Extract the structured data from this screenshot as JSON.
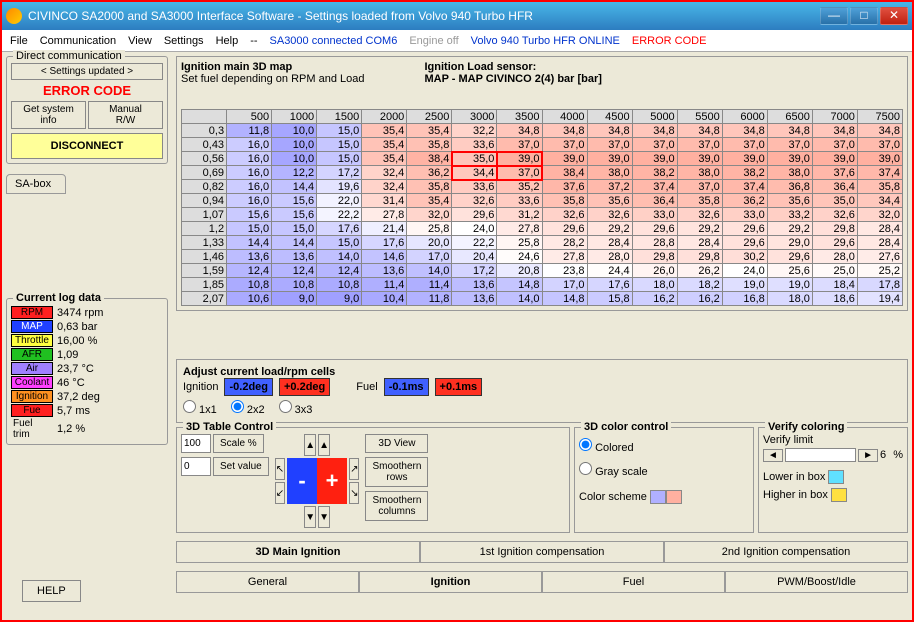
{
  "window": {
    "title": "CIVINCO SA2000 and SA3000 Interface Software - Settings loaded from Volvo 940 Turbo HFR"
  },
  "menu": {
    "items": [
      "File",
      "Communication",
      "View",
      "Settings",
      "Help",
      "--"
    ],
    "status_conn": "SA3000 connected COM6",
    "status_engine": "Engine off",
    "status_vehicle": "Volvo 940 Turbo HFR ONLINE",
    "status_error": "ERROR CODE"
  },
  "direct_comm": {
    "legend": "Direct communication",
    "updated": "< Settings updated >",
    "error": "ERROR CODE",
    "get_info": "Get system\ninfo",
    "manual": "Manual\nR/W",
    "disconnect": "DISCONNECT",
    "tab": "SA-box"
  },
  "log": {
    "legend": "Current log data",
    "rows": [
      {
        "label": "RPM",
        "bg": "#ff2020",
        "fg": "#000",
        "value": "3474 rpm"
      },
      {
        "label": "MAP",
        "bg": "#2040ff",
        "fg": "#fff",
        "value": "0,63 bar"
      },
      {
        "label": "Throttle",
        "bg": "#ffff40",
        "fg": "#000",
        "value": "16,00 %"
      },
      {
        "label": "AFR",
        "bg": "#20c020",
        "fg": "#000",
        "value": "1,09"
      },
      {
        "label": "Air",
        "bg": "#a080ff",
        "fg": "#000",
        "value": "23,7 °C"
      },
      {
        "label": "Coolant",
        "bg": "#ff40ff",
        "fg": "#000",
        "value": "46 °C"
      },
      {
        "label": "Ignition",
        "bg": "#ff9020",
        "fg": "#000",
        "value": "37,2 deg"
      },
      {
        "label": "Fue",
        "bg": "#ff2020",
        "fg": "#000",
        "value": "5,7 ms"
      },
      {
        "label": "Fuel trim",
        "bg": "transparent",
        "fg": "#000",
        "value": "1,2 %",
        "noborder": true
      }
    ]
  },
  "map_header": {
    "left_title": "Ignition main 3D map",
    "left_sub": "Set fuel depending on RPM and Load",
    "right_title": "Ignition Load sensor:",
    "right_sub": "MAP - MAP CIVINCO 2(4) bar [bar]"
  },
  "map": {
    "cols": [
      "500",
      "1000",
      "1500",
      "2000",
      "2500",
      "3000",
      "3500",
      "4000",
      "4500",
      "5000",
      "5500",
      "6000",
      "6500",
      "7000",
      "7500"
    ],
    "row_labels": [
      "0,3",
      "0,43",
      "0,56",
      "0,69",
      "0,82",
      "0,94",
      "1,07",
      "1,2",
      "1,33",
      "1,46",
      "1,59",
      "1,85",
      "2,07"
    ],
    "data": [
      [
        11.8,
        10.0,
        15.0,
        35.4,
        35.4,
        32.2,
        34.8,
        34.8,
        34.8,
        34.8,
        34.8,
        34.8,
        34.8,
        34.8,
        34.8
      ],
      [
        16.0,
        10.0,
        15.0,
        35.4,
        35.8,
        33.6,
        37.0,
        37.0,
        37.0,
        37.0,
        37.0,
        37.0,
        37.0,
        37.0,
        37.0
      ],
      [
        16.0,
        10.0,
        15.0,
        35.4,
        38.4,
        35.0,
        39.0,
        39.0,
        39.0,
        39.0,
        39.0,
        39.0,
        39.0,
        39.0,
        39.0
      ],
      [
        16.0,
        12.2,
        17.2,
        32.4,
        36.2,
        34.4,
        37.0,
        38.4,
        38.0,
        38.2,
        38.0,
        38.2,
        38.0,
        37.6,
        37.4
      ],
      [
        16.0,
        14.4,
        19.6,
        32.4,
        35.8,
        33.6,
        35.2,
        37.6,
        37.2,
        37.4,
        37.0,
        37.4,
        36.8,
        36.4,
        35.8
      ],
      [
        16.0,
        15.6,
        22.0,
        31.4,
        35.4,
        32.6,
        33.6,
        35.8,
        35.6,
        36.4,
        35.8,
        36.2,
        35.6,
        35.0,
        34.4
      ],
      [
        15.6,
        15.6,
        22.2,
        27.8,
        32.0,
        29.6,
        31.2,
        32.6,
        32.6,
        33.0,
        32.6,
        33.0,
        33.2,
        32.6,
        32.0
      ],
      [
        15.0,
        15.0,
        17.6,
        21.4,
        25.8,
        24.0,
        27.8,
        29.6,
        29.2,
        29.6,
        29.2,
        29.6,
        29.2,
        29.8,
        28.4
      ],
      [
        14.4,
        14.4,
        15.0,
        17.6,
        20.0,
        22.2,
        25.8,
        28.2,
        28.4,
        28.8,
        28.4,
        29.6,
        29.0,
        29.6,
        28.4
      ],
      [
        13.6,
        13.6,
        14.0,
        14.6,
        17.0,
        20.4,
        24.6,
        27.8,
        28.0,
        29.8,
        29.8,
        30.2,
        29.6,
        28.0,
        27.6
      ],
      [
        12.4,
        12.4,
        12.4,
        13.6,
        14.0,
        17.2,
        20.8,
        23.8,
        24.4,
        26.0,
        26.2,
        24.0,
        25.6,
        25.0,
        25.2
      ],
      [
        10.8,
        10.8,
        10.8,
        11.4,
        11.4,
        13.6,
        14.8,
        17.0,
        17.6,
        18.0,
        18.2,
        19.0,
        19.0,
        18.4,
        17.8
      ],
      [
        10.6,
        9.0,
        9.0,
        10.4,
        11.8,
        13.6,
        14.0,
        14.8,
        15.8,
        16.2,
        16.2,
        16.8,
        18.0,
        18.6,
        19.4
      ]
    ],
    "highlight": {
      "row": 2,
      "cols": [
        5,
        6
      ]
    },
    "highlight2": {
      "row": 3,
      "cols": [
        5,
        6
      ]
    },
    "colormap": {
      "low": "#a0a0ff",
      "mid": "#ffffff",
      "high": "#ffb0a0",
      "min": 9,
      "max": 39
    }
  },
  "adjust": {
    "legend": "Adjust current load/rpm cells",
    "ign_label": "Ignition",
    "ign_dec": "-0.2deg",
    "ign_inc": "+0.2deg",
    "fuel_label": "Fuel",
    "fuel_dec": "-0.1ms",
    "fuel_inc": "+0.1ms",
    "radios": [
      "1x1",
      "2x2",
      "3x3"
    ],
    "radio_selected": 1
  },
  "table3d": {
    "legend": "3D Table Control",
    "scale_val": "100",
    "scale_lbl": "Scale %",
    "set_val": "0",
    "set_lbl": "Set value",
    "view3d": "3D View",
    "smooth_rows": "Smoothern\nrows",
    "smooth_cols": "Smoothern\ncolumns"
  },
  "color3d": {
    "legend": "3D color control",
    "colored": "Colored",
    "gray": "Gray scale",
    "scheme_lbl": "Color scheme",
    "verify_legend": "Verify coloring",
    "verify_lbl": "Verify limit",
    "verify_val": "6",
    "verify_unit": "%",
    "lower": "Lower in box",
    "higher": "Higher in box",
    "swatch_low": "#b0b0ff",
    "swatch_high": "#ffb0a0",
    "swatch_lower": "#60e0ff",
    "swatch_higher": "#ffe040"
  },
  "mid_tabs": [
    "3D Main Ignition",
    "1st Ignition compensation",
    "2nd Ignition compensation"
  ],
  "mid_tab_active": 0,
  "main_tabs": [
    "General",
    "Ignition",
    "Fuel",
    "PWM/Boost/Idle"
  ],
  "main_tab_active": 1,
  "help": "HELP"
}
